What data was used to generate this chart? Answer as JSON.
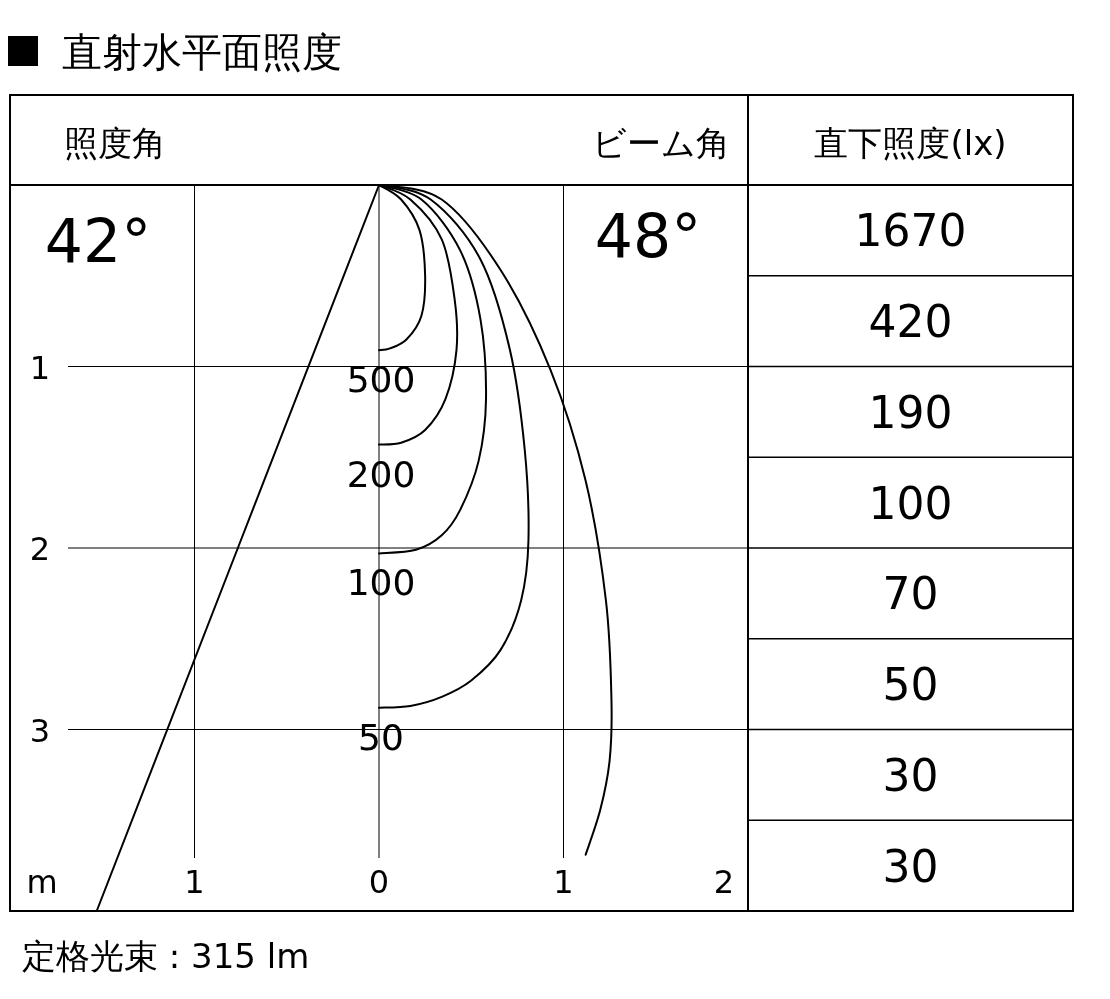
{
  "chart_data": [
    {
      "type": "line",
      "title": "直射水平面照度",
      "xlabel": "m",
      "xlim": [
        -2,
        2
      ],
      "ylim": [
        4,
        0
      ],
      "xticks": [
        {
          "value": -1,
          "label": "1"
        },
        0,
        1,
        2
      ],
      "yticks": [
        1,
        2,
        3
      ],
      "grid": true,
      "series": [
        {
          "name": "500",
          "color": "#000000",
          "x": [
            0,
            0.12,
            0.22,
            0.25,
            0.23,
            0.15,
            0.06,
            0
          ],
          "values": [
            0,
            0.08,
            0.25,
            0.5,
            0.72,
            0.85,
            0.9,
            0.91
          ]
        },
        {
          "name": "200",
          "color": "#000000",
          "x": [
            0,
            0.17,
            0.34,
            0.41,
            0.42,
            0.36,
            0.25,
            0.12,
            0
          ],
          "values": [
            0,
            0.08,
            0.3,
            0.63,
            0.91,
            1.18,
            1.35,
            1.42,
            1.43
          ]
        },
        {
          "name": "100",
          "color": "#000000",
          "x": [
            0,
            0.23,
            0.44,
            0.55,
            0.58,
            0.54,
            0.44,
            0.34,
            0.2,
            0
          ],
          "values": [
            0,
            0.08,
            0.36,
            0.74,
            1.18,
            1.52,
            1.79,
            1.93,
            2.01,
            2.03
          ]
        },
        {
          "name": "50",
          "color": "#000000",
          "x": [
            0,
            0.28,
            0.55,
            0.71,
            0.79,
            0.81,
            0.77,
            0.66,
            0.5,
            0.34,
            0.17,
            0
          ],
          "values": [
            0,
            0.08,
            0.41,
            0.91,
            1.46,
            1.96,
            2.29,
            2.56,
            2.73,
            2.82,
            2.87,
            2.88
          ]
        },
        {
          "color": "#000000",
          "x": [
            0,
            0.34,
            0.66,
            0.93,
            1.12,
            1.23,
            1.26,
            1.25,
            1.2,
            1.12
          ],
          "values": [
            0,
            0.08,
            0.47,
            1.02,
            1.63,
            2.29,
            2.84,
            3.17,
            3.44,
            3.69
          ]
        },
        {
          "color": "#000000",
          "x": [
            0,
            -1.53
          ],
          "values": [
            0,
            4
          ]
        }
      ],
      "annotations": [
        "照度角",
        "42°",
        "ビーム角",
        "48°",
        "定格光束 : 315 lm"
      ]
    },
    {
      "type": "other",
      "title": "直下照度(lx)",
      "categories": [
        null,
        null,
        null,
        null,
        null,
        null,
        null,
        null
      ],
      "values": [
        1670,
        420,
        190,
        100,
        70,
        50,
        30,
        30
      ],
      "data_labels": true
    }
  ]
}
